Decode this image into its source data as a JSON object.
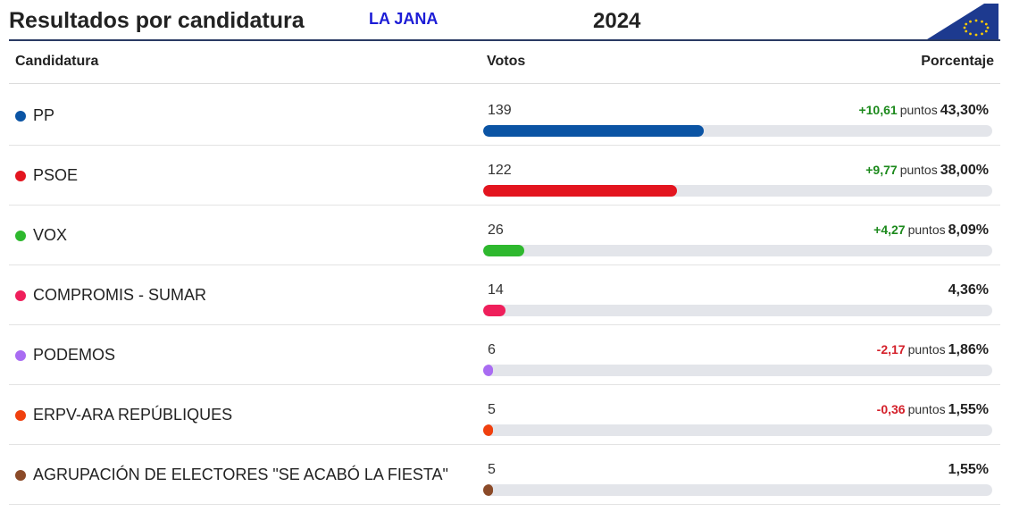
{
  "header": {
    "title": "Resultados por candidatura",
    "place": "LA JANA",
    "year": "2024",
    "flag_color": "#1d3a8f",
    "star_color": "#ffcc00"
  },
  "columns": {
    "candidatura": "Candidatura",
    "votos": "Votos",
    "porcentaje": "Porcentaje"
  },
  "puntos_label": "puntos",
  "rows": [
    {
      "name": "PP",
      "votes": "139",
      "change": "+10,61",
      "change_sign": "pos",
      "pct": "43,30%",
      "pct_value": 43.3,
      "color": "#0b54a4"
    },
    {
      "name": "PSOE",
      "votes": "122",
      "change": "+9,77",
      "change_sign": "pos",
      "pct": "38,00%",
      "pct_value": 38.0,
      "color": "#e3151f"
    },
    {
      "name": "VOX",
      "votes": "26",
      "change": "+4,27",
      "change_sign": "pos",
      "pct": "8,09%",
      "pct_value": 8.09,
      "color": "#2eb82e"
    },
    {
      "name": "COMPROMIS - SUMAR",
      "votes": "14",
      "change": "",
      "change_sign": "none",
      "pct": "4,36%",
      "pct_value": 4.36,
      "color": "#ef1f5b"
    },
    {
      "name": "PODEMOS",
      "votes": "6",
      "change": "-2,17",
      "change_sign": "neg",
      "pct": "1,86%",
      "pct_value": 1.86,
      "color": "#a96cf2"
    },
    {
      "name": "ERPV-ARA REPÚBLIQUES",
      "votes": "5",
      "change": "-0,36",
      "change_sign": "neg",
      "pct": "1,55%",
      "pct_value": 1.55,
      "color": "#f0400e"
    },
    {
      "name": "AGRUPACIÓN DE ELECTORES \"SE ACABÓ LA FIESTA\"",
      "votes": "5",
      "change": "",
      "change_sign": "none",
      "pct": "1,55%",
      "pct_value": 1.55,
      "color": "#8b4a28"
    }
  ]
}
